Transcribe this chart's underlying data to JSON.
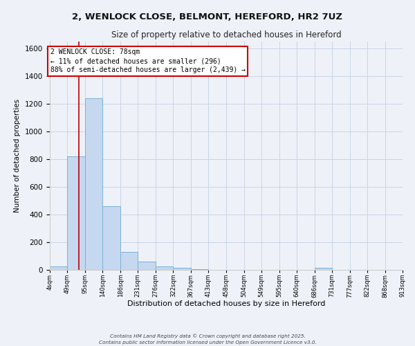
{
  "title_line1": "2, WENLOCK CLOSE, BELMONT, HEREFORD, HR2 7UZ",
  "title_line2": "Size of property relative to detached houses in Hereford",
  "xlabel": "Distribution of detached houses by size in Hereford",
  "ylabel": "Number of detached properties",
  "bar_edges": [
    4,
    49,
    95,
    140,
    186,
    231,
    276,
    322,
    367,
    413,
    458,
    504,
    549,
    595,
    640,
    686,
    731,
    777,
    822,
    868,
    913
  ],
  "bar_heights": [
    25,
    820,
    1240,
    460,
    130,
    60,
    25,
    15,
    5,
    0,
    0,
    0,
    0,
    0,
    0,
    15,
    0,
    0,
    0,
    0
  ],
  "bar_color": "#c5d8f0",
  "bar_edge_color": "#7ab0d8",
  "grid_color": "#c8d4e8",
  "background_color": "#eef2f8",
  "red_line_x": 78,
  "annotation_text": "2 WENLOCK CLOSE: 78sqm\n← 11% of detached houses are smaller (296)\n88% of semi-detached houses are larger (2,439) →",
  "annotation_box_facecolor": "#ffffff",
  "annotation_border_color": "#cc0000",
  "ylim": [
    0,
    1650
  ],
  "yticks": [
    0,
    200,
    400,
    600,
    800,
    1000,
    1200,
    1400,
    1600
  ],
  "tick_labels": [
    "4sqm",
    "49sqm",
    "95sqm",
    "140sqm",
    "186sqm",
    "231sqm",
    "276sqm",
    "322sqm",
    "367sqm",
    "413sqm",
    "458sqm",
    "504sqm",
    "549sqm",
    "595sqm",
    "640sqm",
    "686sqm",
    "731sqm",
    "777sqm",
    "822sqm",
    "868sqm",
    "913sqm"
  ],
  "footer_line1": "Contains HM Land Registry data © Crown copyright and database right 2025.",
  "footer_line2": "Contains public sector information licensed under the Open Government Licence v3.0."
}
